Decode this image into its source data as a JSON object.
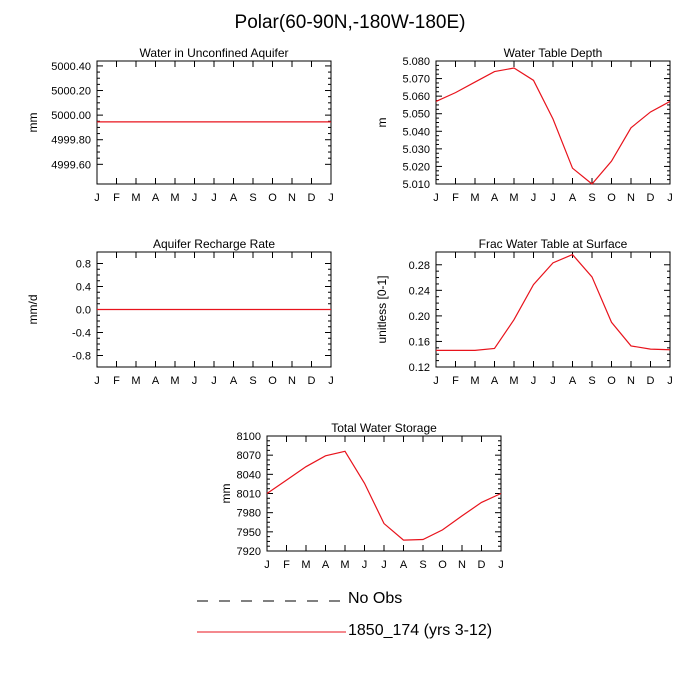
{
  "title": "Polar(60-90N,-180W-180E)",
  "colors": {
    "series": "#e8131c",
    "axis": "#000000",
    "no_obs": "#000000"
  },
  "legend": [
    {
      "label": "No Obs",
      "style": "dashed",
      "color": "#000000"
    },
    {
      "label": "1850_174 (yrs 3-12)",
      "style": "solid",
      "color": "#e8131c"
    }
  ],
  "chart_data": [
    {
      "type": "line",
      "title": "Water in Unconfined Aquifer",
      "ylabel": "mm",
      "xlabel": "",
      "x": [
        "J",
        "F",
        "M",
        "A",
        "M",
        "J",
        "J",
        "A",
        "S",
        "O",
        "N",
        "D",
        "J"
      ],
      "ylim": [
        4999.44,
        5000.44
      ],
      "yticks": [
        4999.6,
        4999.8,
        5000.0,
        5000.2,
        5000.4
      ],
      "ytick_labels": [
        "4999.60",
        "4999.80",
        "5000.00",
        "5000.20",
        "5000.40"
      ],
      "series": [
        {
          "values": [
            4999.945,
            4999.945,
            4999.945,
            4999.945,
            4999.945,
            4999.945,
            4999.945,
            4999.945,
            4999.945,
            4999.945,
            4999.945,
            4999.945,
            4999.945
          ]
        }
      ]
    },
    {
      "type": "line",
      "title": "Water Table Depth",
      "ylabel": "m",
      "xlabel": "",
      "x": [
        "J",
        "F",
        "M",
        "A",
        "M",
        "J",
        "J",
        "A",
        "S",
        "O",
        "N",
        "D",
        "J"
      ],
      "ylim": [
        5.01,
        5.08
      ],
      "yticks": [
        5.01,
        5.02,
        5.03,
        5.04,
        5.05,
        5.06,
        5.07,
        5.08
      ],
      "ytick_labels": [
        "5.010",
        "5.020",
        "5.030",
        "5.040",
        "5.050",
        "5.060",
        "5.070",
        "5.080"
      ],
      "series": [
        {
          "values": [
            5.057,
            5.062,
            5.068,
            5.074,
            5.076,
            5.069,
            5.047,
            5.019,
            5.01,
            5.023,
            5.042,
            5.051,
            5.057
          ]
        }
      ]
    },
    {
      "type": "line",
      "title": "Aquifer Recharge Rate",
      "ylabel": "mm/d",
      "xlabel": "",
      "x": [
        "J",
        "F",
        "M",
        "A",
        "M",
        "J",
        "J",
        "A",
        "S",
        "O",
        "N",
        "D",
        "J"
      ],
      "ylim": [
        -1.0,
        1.0
      ],
      "yticks": [
        -0.8,
        -0.4,
        0.0,
        0.4,
        0.8
      ],
      "ytick_labels": [
        "-0.8",
        "-0.4",
        "0.0",
        "0.4",
        "0.8"
      ],
      "series": [
        {
          "values": [
            0,
            0,
            0,
            0,
            0,
            0,
            0,
            0,
            0,
            0,
            0,
            0,
            0
          ]
        }
      ]
    },
    {
      "type": "line",
      "title": "Frac Water Table at Surface",
      "ylabel": "unitless [0-1]",
      "xlabel": "",
      "x": [
        "J",
        "F",
        "M",
        "A",
        "M",
        "J",
        "J",
        "A",
        "S",
        "O",
        "N",
        "D",
        "J"
      ],
      "ylim": [
        0.12,
        0.3
      ],
      "yticks": [
        0.12,
        0.16,
        0.2,
        0.24,
        0.28
      ],
      "ytick_labels": [
        "0.12",
        "0.16",
        "0.20",
        "0.24",
        "0.28"
      ],
      "series": [
        {
          "values": [
            0.146,
            0.146,
            0.146,
            0.149,
            0.194,
            0.249,
            0.283,
            0.296,
            0.261,
            0.19,
            0.153,
            0.148,
            0.147
          ]
        }
      ]
    },
    {
      "type": "line",
      "title": "Total Water Storage",
      "ylabel": "mm",
      "xlabel": "",
      "x": [
        "J",
        "F",
        "M",
        "A",
        "M",
        "J",
        "J",
        "A",
        "S",
        "O",
        "N",
        "D",
        "J"
      ],
      "ylim": [
        7920,
        8100
      ],
      "yticks": [
        7920,
        7950,
        7980,
        8010,
        8040,
        8070,
        8100
      ],
      "ytick_labels": [
        "7920",
        "7950",
        "7980",
        "8010",
        "8040",
        "8070",
        "8100"
      ],
      "series": [
        {
          "values": [
            8010,
            8031,
            8052,
            8069,
            8076,
            8026,
            7963,
            7937,
            7938,
            7953,
            7975,
            7996,
            8010
          ]
        }
      ]
    }
  ]
}
